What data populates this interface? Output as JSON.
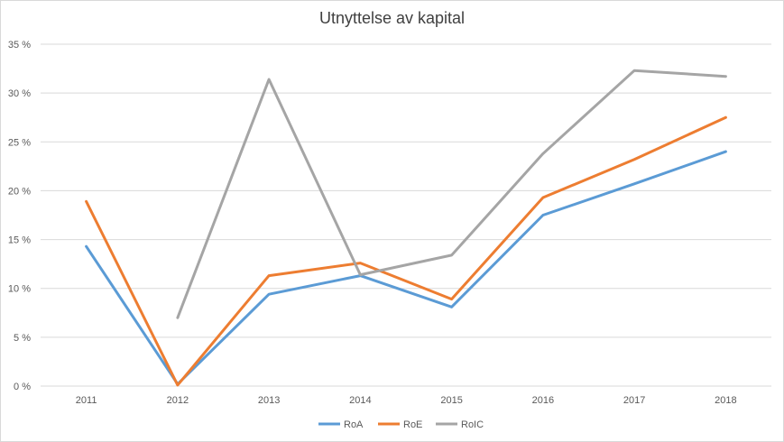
{
  "chart_data": {
    "type": "line",
    "title": "Utnyttelse av kapital",
    "xlabel": "",
    "ylabel": "",
    "x": [
      "2011",
      "2012",
      "2013",
      "2014",
      "2015",
      "2016",
      "2017",
      "2018"
    ],
    "ylim": [
      0,
      35
    ],
    "yticks": [
      0,
      5,
      10,
      15,
      20,
      25,
      30,
      35
    ],
    "ytick_labels": [
      "0 %",
      "5 %",
      "10 %",
      "15 %",
      "20 %",
      "25 %",
      "30 %",
      "35 %"
    ],
    "grid": true,
    "legend_position": "bottom",
    "series": [
      {
        "name": "RoA",
        "color": "#5b9bd5",
        "values": [
          14.3,
          0.2,
          9.4,
          11.3,
          8.1,
          17.5,
          20.7,
          24.0
        ]
      },
      {
        "name": "RoE",
        "color": "#ed7d31",
        "values": [
          18.9,
          0.1,
          11.3,
          12.6,
          8.9,
          19.3,
          23.2,
          27.5
        ]
      },
      {
        "name": "RoIC",
        "color": "#a5a5a5",
        "values": [
          null,
          7.0,
          31.4,
          11.4,
          13.4,
          23.8,
          32.3,
          31.7
        ]
      }
    ]
  }
}
